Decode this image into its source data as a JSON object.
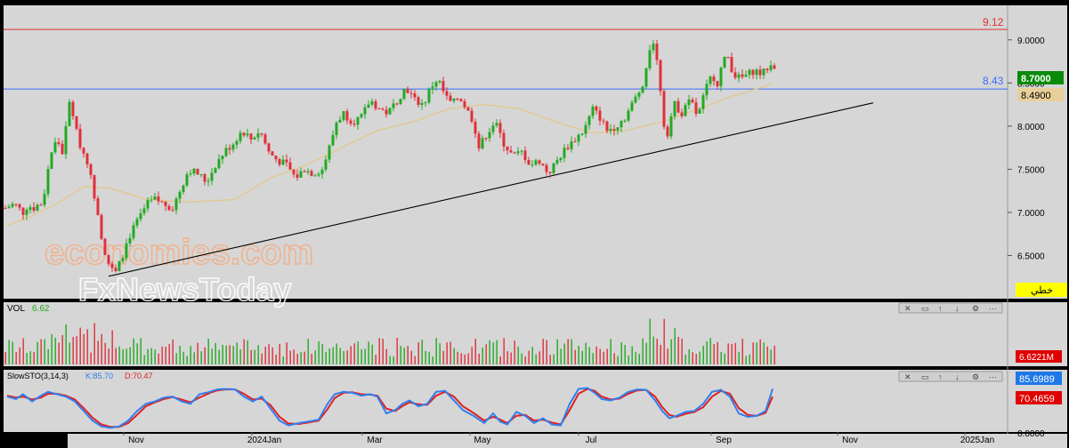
{
  "colors": {
    "panel_bg": "#d6d6d6",
    "bull": "#22aa22",
    "bear": "#e0303a",
    "resistance": "#e03030",
    "support": "#3a6bff",
    "trendline": "#000000",
    "ma": "#e2c98f",
    "stoch_k": "#2f7ff0",
    "stoch_d": "#e02020",
    "badge_last": "#0a8a0a",
    "badge_ma": "#e8cf9a",
    "badge_vol": "#e00000",
    "badge_k": "#1e78e8",
    "badge_d": "#e00000",
    "badge_lang": "#ffff00"
  },
  "price_panel": {
    "resistance_label": "9.12",
    "support_label": "8.43",
    "price_badge": "8.7000",
    "ma_badge": "8.4900",
    "lang_badge": "خطي",
    "watermark_line1": "economies.com",
    "watermark_line2": "FxNewsToday"
  },
  "volume_panel": {
    "title": "VOL",
    "value": "6.62",
    "badge": "6.6221M"
  },
  "stoch_panel": {
    "title": "SlowSTO(3,14,3)",
    "k_label": "K:85.70",
    "d_label": "D:70.47",
    "k_badge": "85.6989",
    "d_badge": "70.4659",
    "zero_label": "0.0000"
  },
  "panel_toolbar_icons": [
    "close-icon",
    "window-icon",
    "up-icon",
    "down-icon",
    "settings-icon",
    "more-icon"
  ],
  "chart_data": {
    "type": "candlestick",
    "x_ticks": [
      "Nov",
      "2024Jan",
      "Mar",
      "May",
      "Jul",
      "Sep",
      "Nov",
      "2025Jan"
    ],
    "y_ticks": [
      "9.0000",
      "8.5000",
      "8.0000",
      "7.5000",
      "7.0000",
      "6.5000"
    ],
    "ylim": [
      6.0,
      9.4
    ],
    "horizontal_levels": [
      9.12,
      8.43
    ],
    "trendline": {
      "from": [
        "Oct",
        6.25
      ],
      "to": [
        "Oct 2024",
        8.27
      ]
    },
    "price_anchors": [
      [
        0,
        7.05
      ],
      [
        10,
        7.1
      ],
      [
        20,
        7.0
      ],
      [
        25,
        7.08
      ],
      [
        32,
        7.05
      ],
      [
        38,
        7.1
      ],
      [
        42,
        7.1
      ],
      [
        50,
        7.65
      ],
      [
        58,
        7.85
      ],
      [
        64,
        7.7
      ],
      [
        70,
        8.1
      ],
      [
        73,
        8.35
      ],
      [
        78,
        8.0
      ],
      [
        85,
        7.75
      ],
      [
        92,
        7.6
      ],
      [
        98,
        7.3
      ],
      [
        104,
        7.0
      ],
      [
        110,
        6.6
      ],
      [
        118,
        6.35
      ],
      [
        124,
        6.3
      ],
      [
        130,
        6.45
      ],
      [
        138,
        6.7
      ],
      [
        146,
        6.85
      ],
      [
        154,
        7.0
      ],
      [
        160,
        7.1
      ],
      [
        168,
        7.15
      ],
      [
        178,
        7.1
      ],
      [
        188,
        7.05
      ],
      [
        196,
        7.25
      ],
      [
        206,
        7.5
      ],
      [
        216,
        7.45
      ],
      [
        226,
        7.35
      ],
      [
        236,
        7.55
      ],
      [
        246,
        7.7
      ],
      [
        256,
        7.8
      ],
      [
        266,
        7.95
      ],
      [
        276,
        7.85
      ],
      [
        286,
        7.95
      ],
      [
        296,
        7.7
      ],
      [
        306,
        7.6
      ],
      [
        316,
        7.55
      ],
      [
        326,
        7.4
      ],
      [
        336,
        7.5
      ],
      [
        346,
        7.45
      ],
      [
        356,
        7.5
      ],
      [
        364,
        7.75
      ],
      [
        372,
        8.05
      ],
      [
        380,
        8.15
      ],
      [
        390,
        8.05
      ],
      [
        400,
        8.1
      ],
      [
        410,
        8.3
      ],
      [
        420,
        8.2
      ],
      [
        430,
        8.15
      ],
      [
        440,
        8.3
      ],
      [
        450,
        8.45
      ],
      [
        460,
        8.3
      ],
      [
        470,
        8.25
      ],
      [
        478,
        8.45
      ],
      [
        486,
        8.55
      ],
      [
        494,
        8.35
      ],
      [
        502,
        8.25
      ],
      [
        510,
        8.35
      ],
      [
        518,
        8.2
      ],
      [
        526,
        8.05
      ],
      [
        532,
        7.75
      ],
      [
        540,
        7.9
      ],
      [
        550,
        8.05
      ],
      [
        560,
        7.8
      ],
      [
        570,
        7.65
      ],
      [
        580,
        7.7
      ],
      [
        590,
        7.55
      ],
      [
        600,
        7.6
      ],
      [
        610,
        7.45
      ],
      [
        620,
        7.6
      ],
      [
        630,
        7.75
      ],
      [
        640,
        7.85
      ],
      [
        650,
        7.95
      ],
      [
        660,
        8.2
      ],
      [
        668,
        8.1
      ],
      [
        676,
        7.95
      ],
      [
        686,
        8.0
      ],
      [
        696,
        8.1
      ],
      [
        704,
        8.25
      ],
      [
        712,
        8.4
      ],
      [
        718,
        8.55
      ],
      [
        722,
        8.8
      ],
      [
        727,
        9.05
      ],
      [
        732,
        8.75
      ],
      [
        737,
        8.35
      ],
      [
        742,
        7.8
      ],
      [
        746,
        8.05
      ],
      [
        752,
        8.25
      ],
      [
        760,
        8.15
      ],
      [
        770,
        8.3
      ],
      [
        778,
        8.1
      ],
      [
        786,
        8.4
      ],
      [
        794,
        8.6
      ],
      [
        800,
        8.5
      ],
      [
        806,
        8.75
      ],
      [
        812,
        8.8
      ],
      [
        818,
        8.6
      ],
      [
        826,
        8.55
      ],
      [
        834,
        8.6
      ],
      [
        842,
        8.65
      ],
      [
        850,
        8.6
      ],
      [
        858,
        8.7
      ],
      [
        864,
        8.7
      ]
    ],
    "ma_anchors": [
      [
        5,
        6.85
      ],
      [
        30,
        6.95
      ],
      [
        60,
        7.1
      ],
      [
        90,
        7.3
      ],
      [
        120,
        7.28
      ],
      [
        160,
        7.15
      ],
      [
        210,
        7.12
      ],
      [
        260,
        7.15
      ],
      [
        300,
        7.4
      ],
      [
        340,
        7.55
      ],
      [
        380,
        7.75
      ],
      [
        420,
        7.95
      ],
      [
        460,
        8.05
      ],
      [
        500,
        8.2
      ],
      [
        540,
        8.25
      ],
      [
        580,
        8.2
      ],
      [
        620,
        8.05
      ],
      [
        660,
        7.92
      ],
      [
        700,
        7.95
      ],
      [
        740,
        8.05
      ],
      [
        780,
        8.2
      ],
      [
        820,
        8.35
      ],
      [
        864,
        8.49
      ]
    ],
    "volume_range": [
      0,
      100
    ],
    "stoch_range": [
      0,
      100
    ],
    "stoch_k_anchors": [
      [
        4,
        70
      ],
      [
        14,
        65
      ],
      [
        22,
        75
      ],
      [
        32,
        60
      ],
      [
        42,
        72
      ],
      [
        50,
        80
      ],
      [
        60,
        75
      ],
      [
        70,
        70
      ],
      [
        80,
        60
      ],
      [
        90,
        40
      ],
      [
        100,
        20
      ],
      [
        110,
        8
      ],
      [
        120,
        5
      ],
      [
        130,
        8
      ],
      [
        140,
        20
      ],
      [
        150,
        40
      ],
      [
        160,
        55
      ],
      [
        170,
        60
      ],
      [
        180,
        68
      ],
      [
        190,
        70
      ],
      [
        200,
        60
      ],
      [
        210,
        55
      ],
      [
        220,
        75
      ],
      [
        232,
        80
      ],
      [
        240,
        85
      ],
      [
        250,
        86
      ],
      [
        260,
        85
      ],
      [
        270,
        70
      ],
      [
        280,
        60
      ],
      [
        290,
        70
      ],
      [
        300,
        45
      ],
      [
        310,
        20
      ],
      [
        320,
        10
      ],
      [
        332,
        15
      ],
      [
        342,
        18
      ],
      [
        354,
        22
      ],
      [
        364,
        55
      ],
      [
        372,
        75
      ],
      [
        382,
        80
      ],
      [
        392,
        78
      ],
      [
        402,
        72
      ],
      [
        412,
        75
      ],
      [
        420,
        70
      ],
      [
        430,
        35
      ],
      [
        440,
        42
      ],
      [
        448,
        55
      ],
      [
        456,
        62
      ],
      [
        466,
        50
      ],
      [
        476,
        55
      ],
      [
        486,
        80
      ],
      [
        496,
        82
      ],
      [
        506,
        62
      ],
      [
        516,
        42
      ],
      [
        528,
        30
      ],
      [
        540,
        15
      ],
      [
        550,
        35
      ],
      [
        558,
        18
      ],
      [
        566,
        12
      ],
      [
        576,
        38
      ],
      [
        586,
        30
      ],
      [
        596,
        15
      ],
      [
        606,
        25
      ],
      [
        616,
        12
      ],
      [
        626,
        10
      ],
      [
        636,
        55
      ],
      [
        646,
        86
      ],
      [
        656,
        88
      ],
      [
        664,
        78
      ],
      [
        672,
        65
      ],
      [
        682,
        62
      ],
      [
        692,
        68
      ],
      [
        702,
        80
      ],
      [
        712,
        85
      ],
      [
        722,
        84
      ],
      [
        732,
        62
      ],
      [
        740,
        40
      ],
      [
        748,
        25
      ],
      [
        756,
        30
      ],
      [
        766,
        38
      ],
      [
        776,
        40
      ],
      [
        786,
        55
      ],
      [
        796,
        80
      ],
      [
        806,
        84
      ],
      [
        816,
        70
      ],
      [
        826,
        35
      ],
      [
        836,
        28
      ],
      [
        846,
        30
      ],
      [
        856,
        40
      ],
      [
        864,
        86
      ]
    ],
    "stoch_d_anchors": [
      [
        4,
        72
      ],
      [
        14,
        68
      ],
      [
        22,
        70
      ],
      [
        32,
        64
      ],
      [
        42,
        68
      ],
      [
        50,
        76
      ],
      [
        60,
        76
      ],
      [
        70,
        72
      ],
      [
        80,
        64
      ],
      [
        90,
        46
      ],
      [
        100,
        26
      ],
      [
        110,
        12
      ],
      [
        120,
        7
      ],
      [
        130,
        7
      ],
      [
        140,
        15
      ],
      [
        150,
        32
      ],
      [
        160,
        50
      ],
      [
        170,
        58
      ],
      [
        180,
        65
      ],
      [
        190,
        69
      ],
      [
        200,
        64
      ],
      [
        210,
        58
      ],
      [
        220,
        68
      ],
      [
        232,
        78
      ],
      [
        240,
        83
      ],
      [
        250,
        85
      ],
      [
        260,
        85
      ],
      [
        270,
        76
      ],
      [
        280,
        64
      ],
      [
        290,
        66
      ],
      [
        300,
        52
      ],
      [
        310,
        28
      ],
      [
        320,
        14
      ],
      [
        332,
        13
      ],
      [
        342,
        16
      ],
      [
        354,
        20
      ],
      [
        364,
        44
      ],
      [
        372,
        67
      ],
      [
        382,
        78
      ],
      [
        392,
        79
      ],
      [
        402,
        75
      ],
      [
        412,
        74
      ],
      [
        420,
        72
      ],
      [
        430,
        45
      ],
      [
        440,
        40
      ],
      [
        448,
        50
      ],
      [
        456,
        58
      ],
      [
        466,
        54
      ],
      [
        476,
        53
      ],
      [
        486,
        72
      ],
      [
        496,
        80
      ],
      [
        506,
        70
      ],
      [
        516,
        50
      ],
      [
        528,
        36
      ],
      [
        540,
        20
      ],
      [
        550,
        28
      ],
      [
        558,
        22
      ],
      [
        566,
        15
      ],
      [
        576,
        30
      ],
      [
        586,
        32
      ],
      [
        596,
        20
      ],
      [
        606,
        22
      ],
      [
        616,
        16
      ],
      [
        626,
        12
      ],
      [
        636,
        42
      ],
      [
        646,
        76
      ],
      [
        656,
        86
      ],
      [
        664,
        82
      ],
      [
        672,
        70
      ],
      [
        682,
        64
      ],
      [
        692,
        66
      ],
      [
        702,
        76
      ],
      [
        712,
        83
      ],
      [
        722,
        84
      ],
      [
        732,
        70
      ],
      [
        740,
        48
      ],
      [
        748,
        32
      ],
      [
        756,
        28
      ],
      [
        766,
        34
      ],
      [
        776,
        38
      ],
      [
        786,
        48
      ],
      [
        796,
        70
      ],
      [
        806,
        82
      ],
      [
        816,
        76
      ],
      [
        826,
        46
      ],
      [
        836,
        32
      ],
      [
        846,
        30
      ],
      [
        856,
        36
      ],
      [
        864,
        70
      ]
    ]
  }
}
